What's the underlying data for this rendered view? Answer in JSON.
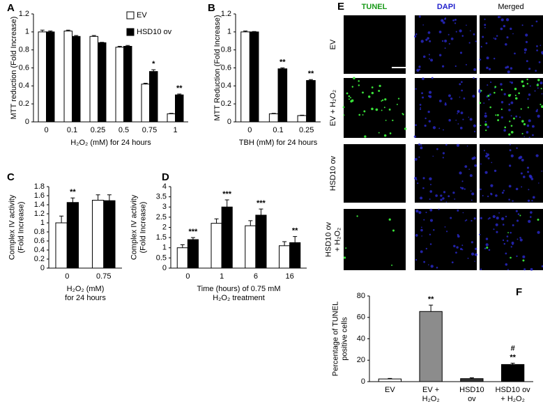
{
  "chart_data": [
    {
      "type": "bar",
      "panel_label": "A",
      "y_label": "MTT reduction (Fold Increase)",
      "x_label": "H₂O₂ (mM) for 24 hours",
      "categories": [
        "0",
        "0.1",
        "0.25",
        "0.5",
        "0.75",
        "1"
      ],
      "series": [
        {
          "name": "EV",
          "color": "#ffffff",
          "values": [
            1,
            1.01,
            0.95,
            0.83,
            0.42,
            0.09
          ],
          "errors": [
            0.02,
            0.01,
            0.01,
            0.01,
            0.01,
            0.005
          ],
          "annotations": [
            null,
            null,
            null,
            null,
            null,
            null
          ]
        },
        {
          "name": "HSD10 ov",
          "color": "#000000",
          "values": [
            1,
            0.95,
            0.88,
            0.84,
            0.56,
            0.3
          ],
          "errors": [
            0.01,
            0.01,
            0.005,
            0.01,
            0.02,
            0.01
          ],
          "annotations": [
            null,
            null,
            null,
            null,
            "*",
            "**"
          ]
        }
      ],
      "ylim": [
        0,
        1.2
      ],
      "yticks": [
        0,
        0.2,
        0.4,
        0.6,
        0.8,
        1,
        1.2
      ],
      "legend": true
    },
    {
      "type": "bar",
      "panel_label": "B",
      "y_label": "MTT Reduction (Fold Increase)",
      "x_label": "TBH (mM) for 24 hours",
      "categories": [
        "0",
        "0.1",
        "0.25"
      ],
      "series": [
        {
          "name": "EV",
          "color": "#ffffff",
          "values": [
            1,
            0.09,
            0.07
          ],
          "errors": [
            0.01,
            0.005,
            0.005
          ],
          "annotations": [
            null,
            null,
            null
          ]
        },
        {
          "name": "HSD10 ov",
          "color": "#000000",
          "values": [
            1,
            0.59,
            0.46
          ],
          "errors": [
            0.005,
            0.01,
            0.01
          ],
          "annotations": [
            null,
            "**",
            "**"
          ]
        }
      ],
      "ylim": [
        0,
        1.2
      ],
      "yticks": [
        0,
        0.2,
        0.4,
        0.6,
        0.8,
        1,
        1.2
      ],
      "legend": false
    },
    {
      "type": "bar",
      "panel_label": "C",
      "y_label": [
        "Complex IV activity",
        "(Fold Increase)"
      ],
      "x_label": [
        "H₂O₂ (mM)",
        "for 24 hours"
      ],
      "categories": [
        "0",
        "0.75"
      ],
      "series": [
        {
          "name": "EV",
          "color": "#ffffff",
          "values": [
            1,
            1.5
          ],
          "errors": [
            0.15,
            0.12
          ],
          "annotations": [
            null,
            null
          ]
        },
        {
          "name": "HSD10 ov",
          "color": "#000000",
          "values": [
            1.45,
            1.49
          ],
          "errors": [
            0.1,
            0.13
          ],
          "annotations": [
            "**",
            null
          ]
        }
      ],
      "ylim": [
        0,
        1.8
      ],
      "yticks": [
        0,
        0.2,
        0.4,
        0.6,
        0.8,
        1,
        1.2,
        1.4,
        1.6,
        1.8
      ],
      "legend": false
    },
    {
      "type": "bar",
      "panel_label": "D",
      "y_label": [
        "Complex IV activity",
        "(Fold Increase)"
      ],
      "x_label": [
        "Time (hours) of 0.75 mM",
        "H₂O₂ treatment"
      ],
      "categories": [
        "0",
        "1",
        "6",
        "16"
      ],
      "series": [
        {
          "name": "EV",
          "color": "#ffffff",
          "values": [
            1,
            2.2,
            2.08,
            1.1
          ],
          "errors": [
            0.15,
            0.22,
            0.25,
            0.2
          ],
          "annotations": [
            null,
            null,
            null,
            null
          ]
        },
        {
          "name": "HSD10 ov",
          "color": "#000000",
          "values": [
            1.4,
            3.0,
            2.6,
            1.25
          ],
          "errors": [
            0.1,
            0.35,
            0.3,
            0.3
          ],
          "annotations": [
            "***",
            "***",
            "***",
            "**"
          ]
        }
      ],
      "ylim": [
        0,
        4
      ],
      "yticks": [
        0,
        0.5,
        1,
        1.5,
        2,
        2.5,
        3,
        3.5,
        4
      ],
      "legend": false
    },
    {
      "type": "bar",
      "panel_label": "F",
      "y_label": [
        "Percentage of TUNEL",
        "positive cells"
      ],
      "categories": [
        [
          "EV"
        ],
        [
          "EV +",
          "H₂O₂"
        ],
        [
          "HSD10",
          "ov"
        ],
        [
          "HSD10 ov",
          "+ H₂O₂"
        ]
      ],
      "values": [
        2.5,
        65.5,
        2.8,
        16
      ],
      "errors": [
        0.5,
        6,
        0.8,
        1.2
      ],
      "colors": [
        "#ffffff",
        "#8c8c8c",
        "#333333",
        "#000000"
      ],
      "annotations": [
        null,
        [
          "**"
        ],
        null,
        [
          "#",
          "**"
        ]
      ],
      "ylim": [
        0,
        80
      ],
      "yticks": [
        0,
        20,
        40,
        60,
        80
      ],
      "legend": false
    }
  ],
  "image_panel": {
    "label": "E",
    "columns": [
      "TUNEL",
      "DAPI",
      "Merged"
    ],
    "rows": [
      [
        "EV"
      ],
      [
        "EV + H₂O₂"
      ],
      [
        "HSD10 ov"
      ],
      [
        "HSD10 ov",
        "+ H₂O₂"
      ]
    ]
  }
}
